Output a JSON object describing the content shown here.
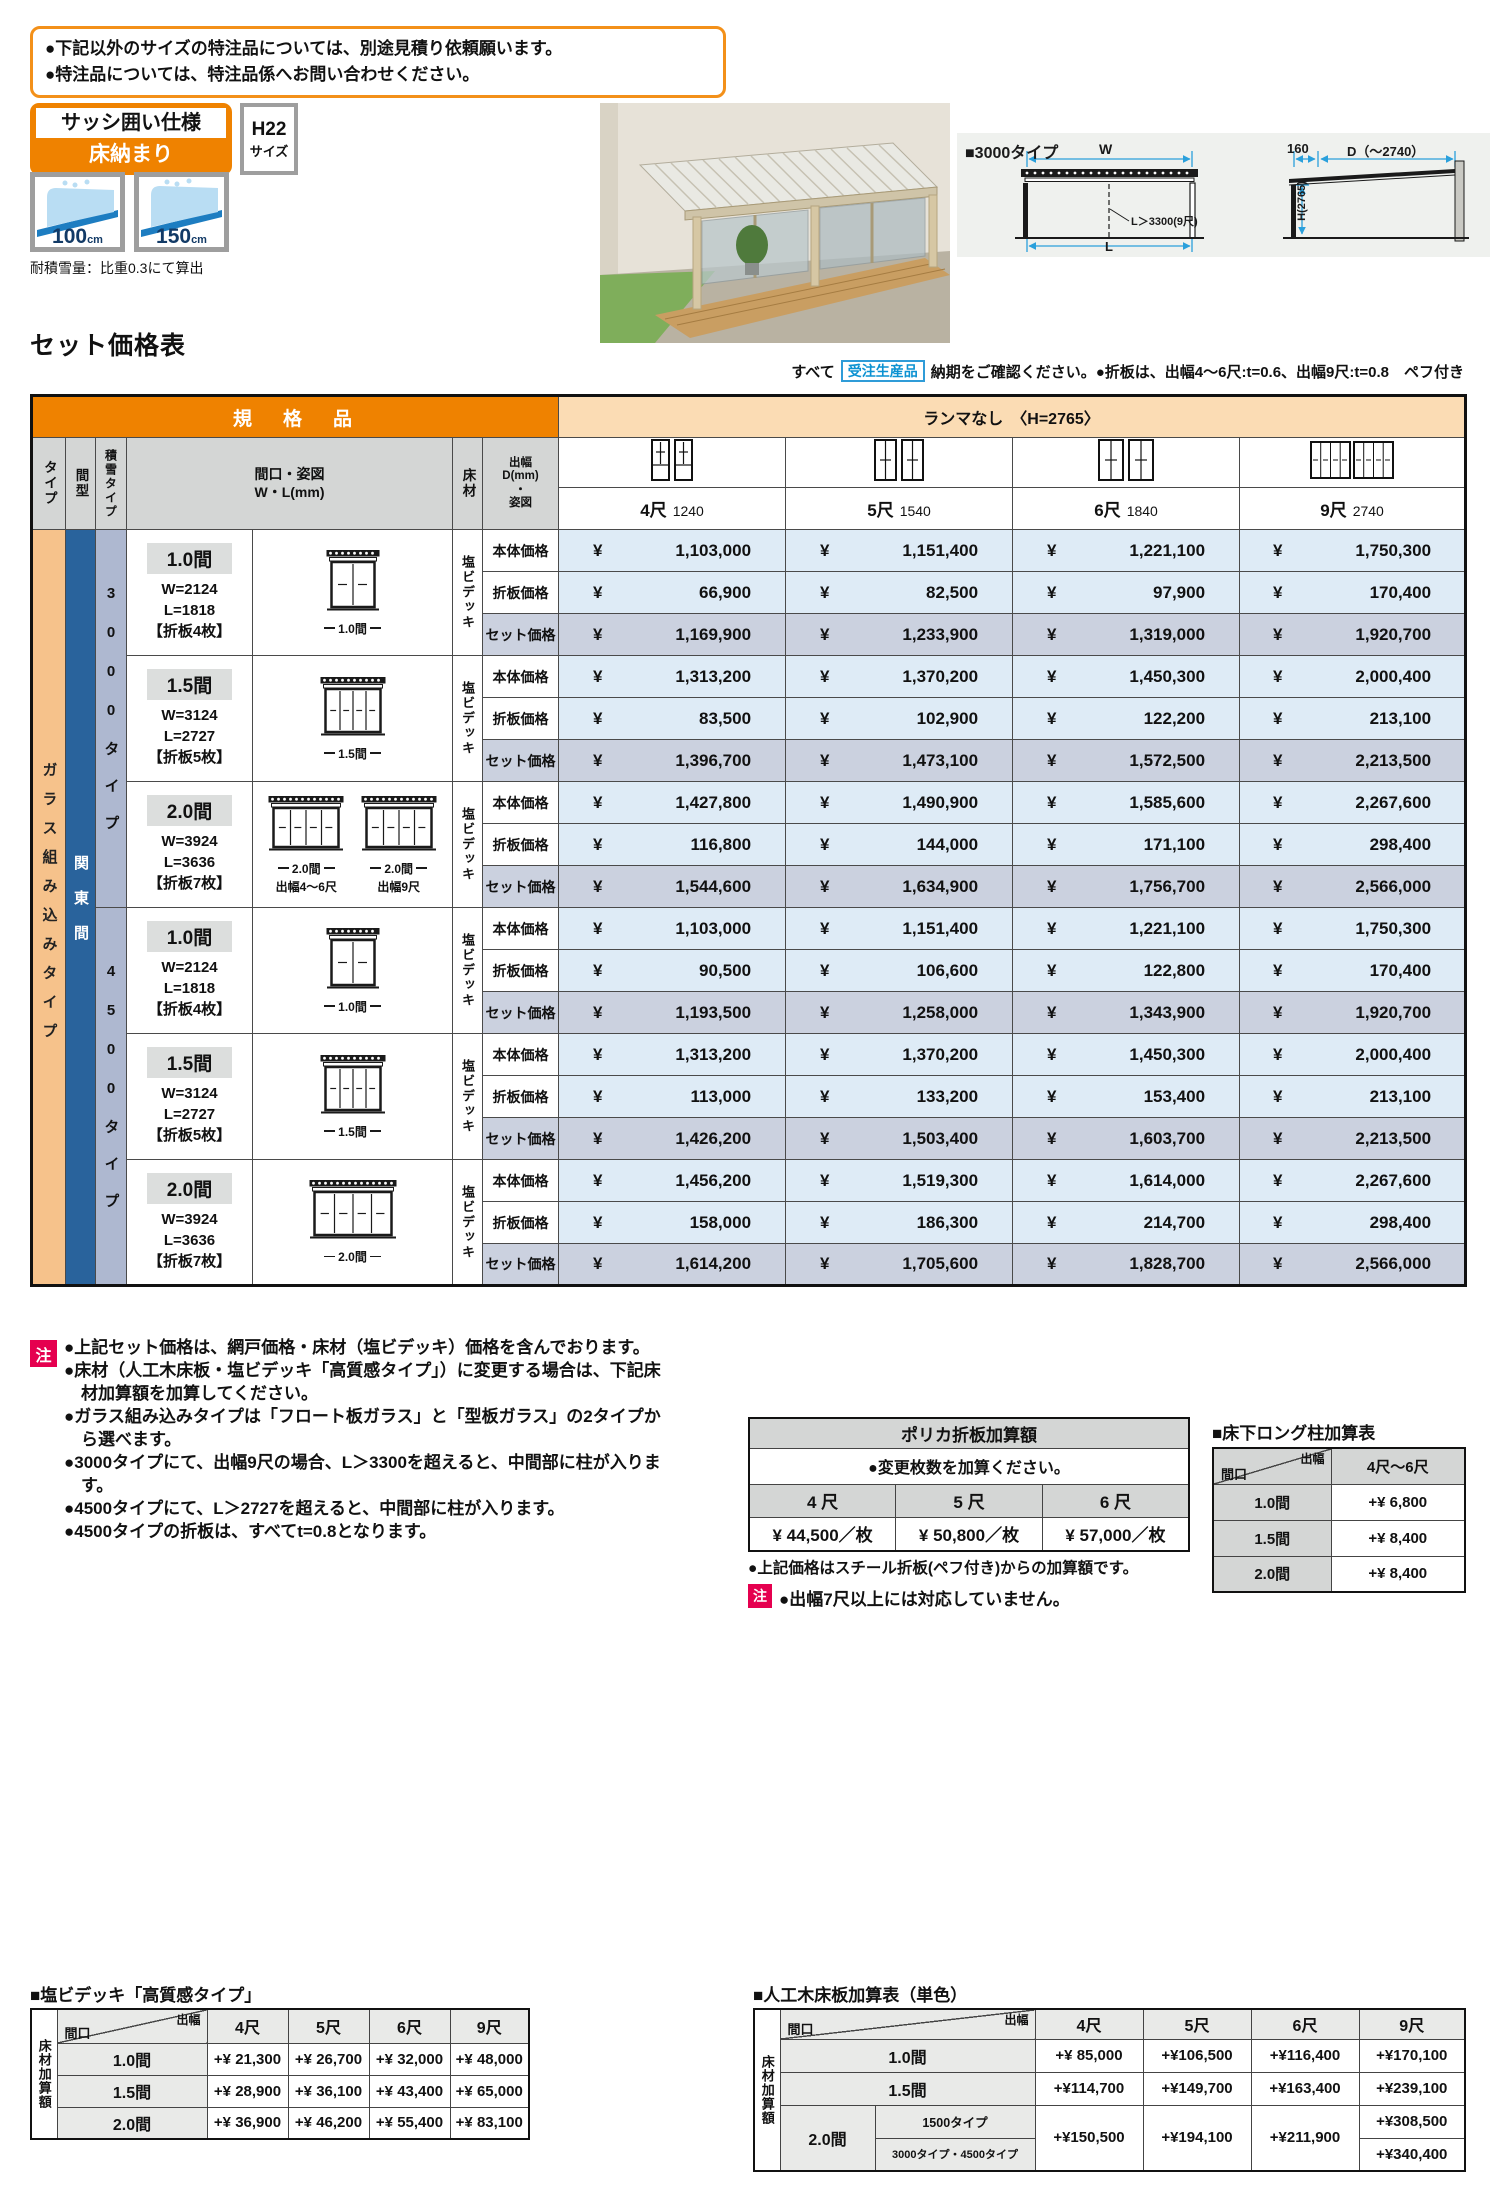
{
  "colors": {
    "orange": "#ef8200",
    "peach": "#fbdcb4",
    "row_blue": "#deebf6",
    "row_lavender": "#cbd1df",
    "kanto_blue": "#29639c",
    "group_periwinkle": "#aeb8d0",
    "glass_orange": "#f6c28b",
    "note_pink": "#e5004f",
    "dim_blue": "#2aa0dc",
    "header_gray": "#d4d6d5"
  },
  "notice": {
    "lines": [
      "●下記以外のサイズの特注品については、別途見積り依頼願います。",
      "●特注品については、特注品係へお問い合わせください。"
    ]
  },
  "spec_badge": {
    "top": "サッシ囲い仕様",
    "bottom": "床納まり"
  },
  "size_badge": {
    "top": "H22",
    "bottom": "サイズ"
  },
  "snow": {
    "icons": [
      {
        "value": "100",
        "unit": "cm"
      },
      {
        "value": "150",
        "unit": "cm"
      }
    ],
    "caption": "耐積雪量：比重0.3にて算出"
  },
  "diagram": {
    "title": "■3000タイプ",
    "w": "W",
    "d160": "160",
    "d": "D（～2740）",
    "h": "H(2765)",
    "l_note": "L＞3300(9尺)",
    "l": "L"
  },
  "set_price": {
    "title": "セット価格表",
    "lead": "すべて",
    "lead_badge": "受注生産品",
    "lead_rest": "納期をご確認ください。●折板は、出幅4～6尺:t=0.6、出幅9尺:t=0.8　ペフ付き",
    "currency": "¥",
    "header": {
      "standard": "規　格　品",
      "ranma": "ランマなし　〈H=2765〉",
      "type": "タイプ",
      "madori": "間型",
      "snow": "積雪タイプ",
      "spec": "間口・姿図\nW・L(mm)",
      "floor": "床材",
      "depth": "出幅\nD(mm)\n・\n姿図",
      "sizes": [
        {
          "shaku": "4尺",
          "mm": "1240"
        },
        {
          "shaku": "5尺",
          "mm": "1540"
        },
        {
          "shaku": "6尺",
          "mm": "1840"
        },
        {
          "shaku": "9尺",
          "mm": "2740"
        }
      ]
    },
    "glass_type": "ガラス組み込みタイプ",
    "kanto": "関東間",
    "groups": [
      "3000タイプ",
      "4500タイプ"
    ],
    "floor_material": "塩ビデッキ",
    "row_labels": [
      "本体価格",
      "折板価格",
      "セット価格"
    ],
    "blocks": [
      {
        "span": "1.0間",
        "w": "W=2124",
        "l": "L=1818",
        "sheets": "【折板4枚】",
        "dim": "1.0間",
        "rows": [
          [
            "1,103,000",
            "1,151,400",
            "1,221,100",
            "1,750,300"
          ],
          [
            "66,900",
            "82,500",
            "97,900",
            "170,400"
          ],
          [
            "1,169,900",
            "1,233,900",
            "1,319,000",
            "1,920,700"
          ]
        ]
      },
      {
        "span": "1.5間",
        "w": "W=3124",
        "l": "L=2727",
        "sheets": "【折板5枚】",
        "dim": "1.5間",
        "rows": [
          [
            "1,313,200",
            "1,370,200",
            "1,450,300",
            "2,000,400"
          ],
          [
            "83,500",
            "102,900",
            "122,200",
            "213,100"
          ],
          [
            "1,396,700",
            "1,473,100",
            "1,572,500",
            "2,213,500"
          ]
        ]
      },
      {
        "span": "2.0間",
        "w": "W=3924",
        "l": "L=3636",
        "sheets": "【折板7枚】",
        "dim": "2.0間",
        "dim2": "2.0間",
        "cap1": "出幅4～6尺",
        "cap2": "出幅9尺",
        "rows": [
          [
            "1,427,800",
            "1,490,900",
            "1,585,600",
            "2,267,600"
          ],
          [
            "116,800",
            "144,000",
            "171,100",
            "298,400"
          ],
          [
            "1,544,600",
            "1,634,900",
            "1,756,700",
            "2,566,000"
          ]
        ]
      },
      {
        "span": "1.0間",
        "w": "W=2124",
        "l": "L=1818",
        "sheets": "【折板4枚】",
        "dim": "1.0間",
        "rows": [
          [
            "1,103,000",
            "1,151,400",
            "1,221,100",
            "1,750,300"
          ],
          [
            "90,500",
            "106,600",
            "122,800",
            "170,400"
          ],
          [
            "1,193,500",
            "1,258,000",
            "1,343,900",
            "1,920,700"
          ]
        ]
      },
      {
        "span": "1.5間",
        "w": "W=3124",
        "l": "L=2727",
        "sheets": "【折板5枚】",
        "dim": "1.5間",
        "rows": [
          [
            "1,313,200",
            "1,370,200",
            "1,450,300",
            "2,000,400"
          ],
          [
            "113,000",
            "133,200",
            "153,400",
            "213,100"
          ],
          [
            "1,426,200",
            "1,503,400",
            "1,603,700",
            "2,213,500"
          ]
        ]
      },
      {
        "span": "2.0間",
        "w": "W=3924",
        "l": "L=3636",
        "sheets": "【折板7枚】",
        "dim": "2.0間",
        "rows": [
          [
            "1,456,200",
            "1,519,300",
            "1,614,000",
            "2,267,600"
          ],
          [
            "158,000",
            "186,300",
            "214,700",
            "298,400"
          ],
          [
            "1,614,200",
            "1,705,600",
            "1,828,700",
            "2,566,000"
          ]
        ]
      }
    ]
  },
  "notes": {
    "badge": "注",
    "items": [
      "●上記セット価格は、網戸価格・床材（塩ビデッキ）価格を含んでおります。",
      "●床材（人工木床板・塩ビデッキ「高質感タイプ」）に変更する場合は、下記床材加算額を加算してください。",
      "●ガラス組み込みタイプは「フロート板ガラス」と「型板ガラス」の2タイプから選べます。",
      "●3000タイプにて、出幅9尺の場合、L＞3300を超えると、中間部に柱が入ります。",
      "●4500タイプにて、L＞2727を超えると、中間部に柱が入ります。",
      "●4500タイプの折板は、すべてt=0.8となります。"
    ]
  },
  "polyca": {
    "title": "ポリカ折板加算額",
    "note": "●変更枚数を加算ください。",
    "cols": [
      "4 尺",
      "5 尺",
      "6 尺"
    ],
    "values": [
      "¥ 44,500／枚",
      "¥ 50,800／枚",
      "¥ 57,000／枚"
    ],
    "footnote": "●上記価格はスチール折板(ペフ付き)からの加算額です。",
    "badge": "注",
    "caution": "●出幅7尺以上には対応していません。"
  },
  "long_pillar": {
    "title": "■床下ロング柱加算表",
    "corner_top": "出幅",
    "corner_left": "間口",
    "col": "4尺～6尺",
    "rows": [
      {
        "label": "1.0間",
        "value": "+¥ 6,800"
      },
      {
        "label": "1.5間",
        "value": "+¥ 8,400"
      },
      {
        "label": "2.0間",
        "value": "+¥ 8,400"
      }
    ]
  },
  "vinyl_deck": {
    "title": "■塩ビデッキ「高質感タイプ」",
    "side": "床材加算額",
    "corner_top": "出幅",
    "corner_left": "間口",
    "cols": [
      "4尺",
      "5尺",
      "6尺",
      "9尺"
    ],
    "rows": [
      {
        "label": "1.0間",
        "values": [
          "+¥ 21,300",
          "+¥ 26,700",
          "+¥ 32,000",
          "+¥ 48,000"
        ]
      },
      {
        "label": "1.5間",
        "values": [
          "+¥ 28,900",
          "+¥ 36,100",
          "+¥ 43,400",
          "+¥ 65,000"
        ]
      },
      {
        "label": "2.0間",
        "values": [
          "+¥ 36,900",
          "+¥ 46,200",
          "+¥ 55,400",
          "+¥ 83,100"
        ]
      }
    ]
  },
  "wood_deck": {
    "title": "■人工木床板加算表（単色）",
    "side": "床材加算額",
    "corner_top": "出幅",
    "corner_left": "間口",
    "cols": [
      "4尺",
      "5尺",
      "6尺",
      "9尺"
    ],
    "rows": [
      {
        "label": "1.0間",
        "values": [
          "+¥ 85,000",
          "+¥106,500",
          "+¥116,400",
          "+¥170,100"
        ]
      },
      {
        "label": "1.5間",
        "values": [
          "+¥114,700",
          "+¥149,700",
          "+¥163,400",
          "+¥239,100"
        ]
      }
    ],
    "row20": {
      "label": "2.0間",
      "sub1": "1500タイプ",
      "sub2": "3000タイプ・4500タイプ",
      "merged": [
        "+¥150,500",
        "+¥194,100",
        "+¥211,900"
      ],
      "v9_1": "+¥308,500",
      "v9_2": "+¥340,400"
    }
  }
}
